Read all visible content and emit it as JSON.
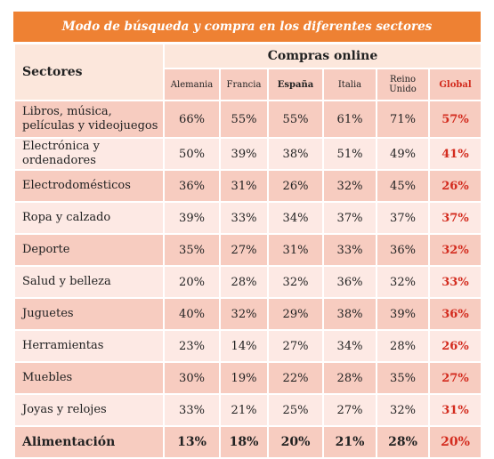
{
  "title": "Modo de búsqueda y compra en los diferentes sectores",
  "header": {
    "sectors_label": "Sectores",
    "group_label": "Compras online",
    "columns": [
      "Alemania",
      "Francia",
      "España",
      "Italia",
      "Reino Unido",
      "Global"
    ]
  },
  "rows": [
    {
      "sector": "Libros, música, películas y videojuegos",
      "values": [
        "66%",
        "55%",
        "55%",
        "61%",
        "71%",
        "57%"
      ]
    },
    {
      "sector": "Electrónica y ordenadores",
      "values": [
        "50%",
        "39%",
        "38%",
        "51%",
        "49%",
        "41%"
      ]
    },
    {
      "sector": "Electrodomésticos",
      "values": [
        "36%",
        "31%",
        "26%",
        "32%",
        "45%",
        "26%"
      ]
    },
    {
      "sector": "Ropa y calzado",
      "values": [
        "39%",
        "33%",
        "34%",
        "37%",
        "37%",
        "37%"
      ]
    },
    {
      "sector": "Deporte",
      "values": [
        "35%",
        "27%",
        "31%",
        "33%",
        "36%",
        "32%"
      ]
    },
    {
      "sector": "Salud y belleza",
      "values": [
        "20%",
        "28%",
        "32%",
        "36%",
        "32%",
        "33%"
      ]
    },
    {
      "sector": "Juguetes",
      "values": [
        "40%",
        "32%",
        "29%",
        "38%",
        "39%",
        "36%"
      ]
    },
    {
      "sector": "Herramientas",
      "values": [
        "23%",
        "14%",
        "27%",
        "34%",
        "28%",
        "26%"
      ]
    },
    {
      "sector": "Muebles",
      "values": [
        "30%",
        "19%",
        "22%",
        "28%",
        "35%",
        "27%"
      ]
    },
    {
      "sector": "Joyas y relojes",
      "values": [
        "33%",
        "21%",
        "25%",
        "27%",
        "32%",
        "31%"
      ]
    },
    {
      "sector": "Alimentación",
      "values": [
        "13%",
        "18%",
        "20%",
        "21%",
        "28%",
        "20%"
      ]
    }
  ],
  "colors": {
    "title_bg": "#ee8133",
    "row_dark": "#f7ccc0",
    "row_light": "#fde9e4",
    "global_text": "#d32b1e"
  }
}
